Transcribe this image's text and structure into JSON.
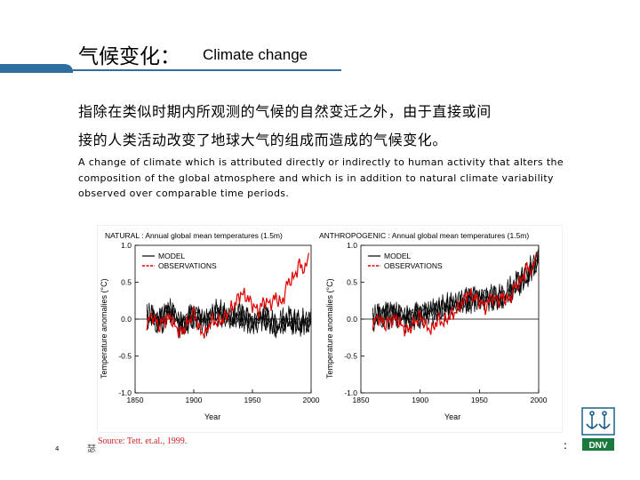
{
  "slide": {
    "title_cn": "气候变化：",
    "title_en": "Climate change",
    "definition_cn_line1": "指除在类似时期内所观测的气候的自然变迁之外，由于直接或间",
    "definition_cn_line2": "接的人类活动改变了地球大气的组成而造成的气候变化。",
    "definition_en_line1": "A change of climate which is attributed directly or indirectly to human activity that alters the",
    "definition_en_line2": "composition of the global atmosphere and which is in addition to natural climate variability",
    "definition_en_line3": "observed over comparable time periods.",
    "source": "Source: Tett. et.al., 1999.",
    "page_number": "4",
    "colon_mark": ":",
    "footer_glyph": "瑟",
    "logo_text": "DNV"
  },
  "colors": {
    "header_blue": "#2f6f9f",
    "observations_red": "#e00000",
    "model_black": "#000000",
    "logo_green": "#1a7a3c"
  },
  "chart_data": [
    {
      "type": "line",
      "title": "NATURAL : Annual global mean temperatures (1.5m)",
      "xlabel": "Year",
      "ylabel": "Temperature anomalies (°C)",
      "xlim": [
        1850,
        2000
      ],
      "ylim": [
        -1.0,
        1.0
      ],
      "xticks": [
        "1850",
        "1900",
        "1950",
        "2000"
      ],
      "yticks": [
        "1.0",
        "0.5",
        "0.0",
        "-0.5",
        "-1.0"
      ],
      "legend": [
        "MODEL",
        "OBSERVATIONS"
      ],
      "series": [
        {
          "name": "OBSERVATIONS",
          "color": "#e00000",
          "x": [
            1860,
            1865,
            1870,
            1875,
            1880,
            1885,
            1890,
            1895,
            1900,
            1905,
            1910,
            1915,
            1920,
            1925,
            1930,
            1935,
            1940,
            1945,
            1950,
            1955,
            1960,
            1965,
            1970,
            1975,
            1980,
            1985,
            1990,
            1995,
            1998
          ],
          "values": [
            -0.05,
            0.05,
            -0.1,
            0.0,
            0.02,
            -0.12,
            -0.18,
            -0.05,
            0.1,
            -0.15,
            -0.2,
            0.0,
            -0.05,
            0.0,
            0.1,
            0.2,
            0.35,
            0.3,
            0.2,
            0.1,
            0.25,
            0.2,
            0.3,
            0.2,
            0.5,
            0.55,
            0.75,
            0.65,
            0.9
          ]
        },
        {
          "name": "MODEL",
          "color": "#000000",
          "x": [
            1860,
            1870,
            1880,
            1890,
            1900,
            1910,
            1920,
            1930,
            1940,
            1950,
            1960,
            1970,
            1980,
            1990,
            2000
          ],
          "values": [
            0.05,
            -0.05,
            0.1,
            -0.1,
            0.05,
            -0.05,
            0.1,
            0.0,
            0.05,
            -0.05,
            0.05,
            -0.1,
            0.0,
            -0.05,
            0.0
          ]
        }
      ]
    },
    {
      "type": "line",
      "title": "ANTHROPOGENIC : Annual global mean temperatures (1.5m)",
      "xlabel": "Year",
      "ylabel": "Temperature anomalies (°C)",
      "xlim": [
        1850,
        2000
      ],
      "ylim": [
        -1.0,
        1.0
      ],
      "xticks": [
        "1850",
        "1900",
        "1950",
        "2000"
      ],
      "yticks": [
        "1.0",
        "0.5",
        "0.0",
        "-0.5",
        "-1.0"
      ],
      "legend": [
        "MODEL",
        "OBSERVATIONS"
      ],
      "series": [
        {
          "name": "OBSERVATIONS",
          "color": "#e00000",
          "x": [
            1860,
            1865,
            1870,
            1875,
            1880,
            1885,
            1890,
            1895,
            1900,
            1905,
            1910,
            1915,
            1920,
            1925,
            1930,
            1935,
            1940,
            1945,
            1950,
            1955,
            1960,
            1965,
            1970,
            1975,
            1980,
            1985,
            1990,
            1995,
            1998
          ],
          "values": [
            -0.05,
            0.02,
            -0.08,
            0.0,
            0.0,
            -0.1,
            -0.15,
            -0.05,
            0.05,
            -0.1,
            -0.15,
            0.0,
            -0.05,
            0.05,
            0.1,
            0.2,
            0.35,
            0.3,
            0.25,
            0.15,
            0.3,
            0.25,
            0.3,
            0.25,
            0.45,
            0.5,
            0.7,
            0.65,
            0.9
          ]
        },
        {
          "name": "MODEL",
          "color": "#000000",
          "x": [
            1860,
            1870,
            1880,
            1890,
            1900,
            1910,
            1920,
            1930,
            1940,
            1950,
            1960,
            1970,
            1980,
            1990,
            2000
          ],
          "values": [
            0.0,
            0.05,
            0.05,
            0.0,
            0.05,
            0.1,
            0.15,
            0.2,
            0.25,
            0.3,
            0.3,
            0.3,
            0.45,
            0.6,
            0.85
          ]
        }
      ]
    }
  ]
}
